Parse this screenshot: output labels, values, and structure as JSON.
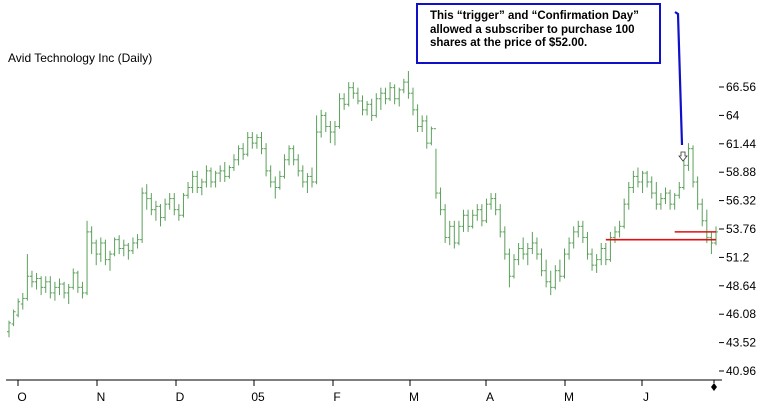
{
  "chart_data": {
    "type": "ohlc",
    "title": "Avid Technology Inc (Daily)",
    "annotation": "This “trigger” and “Confirmation Day” allowed a subscriber to purchase 100 shares at the price of $52.00.",
    "y_ticks": [
      "66.56",
      "64",
      "61.44",
      "58.88",
      "56.32",
      "53.76",
      "51.2",
      "48.64",
      "46.08",
      "43.52",
      "40.96"
    ],
    "ylim": [
      40.96,
      66.56
    ],
    "x_ticks": [
      "O",
      "N",
      "D",
      "05",
      "F",
      "M",
      "A",
      "M",
      "J"
    ],
    "grid": false,
    "bar_color": "#5aa05a",
    "annotation_color": "#1010c8",
    "level_color": "#e01010",
    "levels": [
      {
        "label": "upper",
        "value": 53.5,
        "start_day": 145
      },
      {
        "label": "lower",
        "value": 52.8,
        "start_day": 130
      }
    ],
    "series": [
      {
        "values": [
          [
            44.5,
            45.5,
            44.0,
            45.3
          ],
          [
            45.2,
            46.5,
            45.0,
            46.3
          ],
          [
            46.0,
            47.5,
            45.8,
            47.2
          ],
          [
            47.0,
            48.0,
            46.5,
            47.5
          ],
          [
            47.5,
            51.5,
            47.3,
            49.5
          ],
          [
            49.5,
            50.0,
            48.5,
            49.0
          ],
          [
            49.0,
            49.8,
            48.3,
            49.3
          ],
          [
            49.3,
            49.5,
            47.8,
            48.5
          ],
          [
            48.5,
            49.5,
            48.0,
            49.0
          ],
          [
            49.0,
            49.5,
            47.5,
            48.0
          ],
          [
            48.0,
            49.0,
            47.3,
            48.5
          ],
          [
            48.5,
            49.3,
            47.8,
            48.8
          ],
          [
            48.8,
            49.0,
            47.5,
            48.0
          ],
          [
            48.0,
            48.8,
            47.0,
            48.5
          ],
          [
            48.5,
            50.2,
            48.3,
            49.8
          ],
          [
            49.8,
            50.0,
            48.0,
            48.5
          ],
          [
            48.5,
            49.0,
            47.5,
            48.0
          ],
          [
            48.0,
            54.5,
            47.8,
            53.5
          ],
          [
            53.5,
            54.0,
            51.5,
            52.5
          ],
          [
            52.5,
            52.8,
            50.5,
            51.5
          ],
          [
            51.5,
            53.0,
            50.8,
            52.5
          ],
          [
            52.5,
            52.8,
            50.5,
            51.0
          ],
          [
            51.0,
            51.8,
            50.0,
            51.5
          ],
          [
            51.5,
            53.0,
            51.3,
            52.8
          ],
          [
            52.8,
            53.2,
            51.5,
            52.0
          ],
          [
            52.0,
            52.8,
            51.3,
            52.3
          ],
          [
            52.3,
            52.5,
            51.0,
            51.8
          ],
          [
            51.8,
            53.0,
            51.5,
            52.5
          ],
          [
            52.5,
            53.3,
            52.0,
            52.8
          ],
          [
            52.8,
            57.5,
            52.5,
            57.0
          ],
          [
            57.0,
            57.8,
            55.5,
            56.5
          ],
          [
            56.5,
            57.0,
            55.0,
            55.5
          ],
          [
            55.5,
            56.3,
            54.5,
            55.8
          ],
          [
            55.8,
            56.0,
            54.0,
            54.8
          ],
          [
            54.8,
            56.5,
            54.5,
            56.0
          ],
          [
            56.0,
            57.0,
            55.5,
            56.5
          ],
          [
            56.5,
            57.0,
            55.0,
            55.5
          ],
          [
            55.5,
            56.0,
            54.5,
            55.0
          ],
          [
            55.0,
            57.0,
            54.8,
            56.8
          ],
          [
            56.8,
            58.0,
            56.5,
            57.5
          ],
          [
            57.5,
            59.0,
            57.0,
            58.5
          ],
          [
            58.5,
            59.0,
            57.0,
            57.5
          ],
          [
            57.5,
            58.3,
            56.8,
            58.0
          ],
          [
            58.0,
            59.5,
            57.5,
            59.0
          ],
          [
            59.0,
            59.3,
            57.5,
            58.0
          ],
          [
            58.0,
            59.0,
            57.5,
            58.8
          ],
          [
            58.8,
            59.5,
            58.0,
            59.0
          ],
          [
            59.0,
            59.8,
            58.0,
            58.5
          ],
          [
            58.5,
            59.5,
            58.3,
            59.3
          ],
          [
            59.3,
            60.5,
            59.0,
            60.0
          ],
          [
            60.0,
            61.3,
            59.5,
            61.0
          ],
          [
            61.0,
            61.5,
            60.0,
            60.5
          ],
          [
            60.5,
            62.5,
            60.3,
            62.0
          ],
          [
            62.0,
            62.5,
            61.0,
            61.5
          ],
          [
            61.5,
            62.3,
            61.0,
            62.0
          ],
          [
            62.0,
            62.5,
            60.5,
            61.0
          ],
          [
            61.0,
            61.5,
            58.5,
            59.0
          ],
          [
            59.0,
            59.5,
            57.5,
            58.0
          ],
          [
            58.0,
            58.5,
            56.5,
            57.5
          ],
          [
            57.5,
            59.0,
            57.3,
            58.5
          ],
          [
            58.5,
            60.5,
            58.3,
            60.0
          ],
          [
            60.0,
            61.3,
            59.5,
            61.0
          ],
          [
            61.0,
            61.3,
            59.5,
            60.0
          ],
          [
            60.0,
            60.5,
            58.5,
            59.0
          ],
          [
            59.0,
            59.5,
            57.5,
            58.0
          ],
          [
            58.0,
            58.8,
            57.0,
            58.5
          ],
          [
            58.5,
            59.3,
            57.5,
            58.0
          ],
          [
            58.0,
            64.0,
            57.8,
            62.5
          ],
          [
            62.5,
            64.5,
            62.0,
            64.0
          ],
          [
            64.0,
            64.3,
            62.5,
            63.0
          ],
          [
            63.0,
            63.5,
            61.5,
            62.5
          ],
          [
            62.5,
            63.5,
            61.3,
            63.0
          ],
          [
            63.0,
            66.0,
            62.8,
            65.5
          ],
          [
            65.5,
            66.0,
            64.5,
            65.0
          ],
          [
            65.0,
            67.0,
            64.8,
            66.5
          ],
          [
            66.5,
            67.0,
            65.5,
            66.0
          ],
          [
            66.0,
            66.5,
            65.0,
            65.3
          ],
          [
            65.3,
            65.8,
            64.0,
            64.5
          ],
          [
            64.5,
            65.3,
            64.0,
            65.0
          ],
          [
            65.0,
            65.5,
            63.5,
            64.0
          ],
          [
            64.0,
            66.0,
            63.8,
            65.5
          ],
          [
            65.5,
            66.5,
            64.5,
            66.0
          ],
          [
            66.0,
            66.5,
            65.0,
            65.5
          ],
          [
            65.5,
            67.0,
            65.3,
            66.5
          ],
          [
            66.5,
            66.8,
            65.0,
            65.5
          ],
          [
            65.5,
            66.5,
            64.8,
            66.3
          ],
          [
            66.3,
            67.3,
            66.0,
            67.0
          ],
          [
            67.0,
            68.0,
            65.5,
            66.0
          ],
          [
            66.0,
            66.5,
            64.0,
            64.5
          ],
          [
            64.5,
            65.0,
            62.5,
            63.0
          ],
          [
            63.0,
            64.0,
            62.5,
            63.5
          ],
          [
            63.5,
            64.0,
            61.0,
            61.5
          ],
          [
            61.5,
            63.0,
            61.3,
            62.8
          ],
          [
            62.8,
            61.0,
            56.5,
            57.0
          ],
          [
            57.0,
            57.5,
            55.0,
            55.5
          ],
          [
            55.5,
            56.0,
            52.5,
            53.0
          ],
          [
            53.0,
            54.5,
            52.3,
            54.0
          ],
          [
            54.0,
            54.5,
            52.0,
            52.5
          ],
          [
            52.5,
            54.5,
            52.3,
            54.0
          ],
          [
            54.0,
            55.5,
            53.5,
            55.0
          ],
          [
            55.0,
            55.5,
            53.5,
            54.0
          ],
          [
            54.0,
            55.5,
            53.8,
            55.0
          ],
          [
            55.0,
            56.0,
            54.5,
            55.5
          ],
          [
            55.5,
            56.0,
            54.0,
            54.5
          ],
          [
            54.5,
            56.5,
            54.3,
            56.0
          ],
          [
            56.0,
            57.0,
            55.5,
            56.5
          ],
          [
            56.5,
            57.0,
            55.0,
            55.5
          ],
          [
            55.5,
            56.0,
            53.0,
            53.5
          ],
          [
            53.5,
            54.0,
            51.0,
            51.5
          ],
          [
            51.5,
            52.0,
            48.5,
            49.5
          ],
          [
            49.5,
            51.5,
            49.3,
            51.0
          ],
          [
            51.0,
            52.5,
            50.5,
            52.0
          ],
          [
            52.0,
            53.0,
            51.0,
            51.5
          ],
          [
            51.5,
            52.5,
            50.5,
            52.0
          ],
          [
            52.0,
            53.5,
            51.5,
            52.5
          ],
          [
            52.5,
            53.0,
            51.0,
            51.5
          ],
          [
            51.5,
            52.0,
            49.5,
            50.0
          ],
          [
            50.0,
            51.0,
            48.5,
            49.0
          ],
          [
            49.0,
            50.0,
            47.8,
            48.5
          ],
          [
            48.5,
            50.5,
            48.3,
            50.0
          ],
          [
            50.0,
            51.0,
            49.0,
            49.5
          ],
          [
            49.5,
            52.0,
            49.3,
            51.5
          ],
          [
            51.5,
            53.0,
            51.0,
            52.5
          ],
          [
            52.5,
            54.0,
            52.0,
            53.5
          ],
          [
            53.5,
            54.5,
            53.0,
            54.0
          ],
          [
            54.0,
            54.5,
            52.5,
            53.0
          ],
          [
            53.0,
            53.5,
            51.0,
            51.5
          ],
          [
            51.5,
            52.0,
            50.0,
            50.5
          ],
          [
            50.5,
            51.5,
            49.8,
            51.0
          ],
          [
            51.0,
            52.5,
            50.5,
            52.0
          ],
          [
            52.0,
            52.5,
            50.5,
            51.0
          ],
          [
            51.0,
            53.5,
            50.8,
            53.0
          ],
          [
            53.0,
            54.0,
            52.5,
            53.5
          ],
          [
            53.5,
            54.5,
            53.0,
            54.0
          ],
          [
            54.0,
            56.5,
            53.8,
            56.0
          ],
          [
            56.0,
            58.0,
            55.5,
            57.5
          ],
          [
            57.5,
            59.0,
            57.0,
            58.5
          ],
          [
            58.5,
            59.3,
            57.5,
            58.0
          ],
          [
            58.0,
            59.0,
            57.0,
            58.8
          ],
          [
            58.8,
            59.0,
            57.5,
            58.0
          ],
          [
            58.0,
            58.5,
            56.5,
            57.0
          ],
          [
            57.0,
            58.0,
            55.5,
            56.0
          ],
          [
            56.0,
            57.0,
            55.5,
            56.5
          ],
          [
            56.5,
            57.5,
            56.0,
            57.0
          ],
          [
            57.0,
            57.3,
            55.5,
            56.0
          ],
          [
            56.0,
            57.0,
            55.5,
            56.8
          ],
          [
            56.8,
            58.0,
            56.5,
            57.5
          ],
          [
            57.5,
            60.0,
            57.3,
            59.5
          ],
          [
            59.5,
            61.5,
            59.0,
            61.0
          ],
          [
            61.0,
            61.3,
            57.5,
            58.0
          ],
          [
            58.0,
            58.5,
            55.5,
            56.0
          ],
          [
            56.0,
            56.5,
            54.0,
            54.5
          ],
          [
            54.5,
            55.5,
            52.5,
            53.0
          ],
          [
            53.0,
            53.5,
            51.5,
            52.5
          ],
          [
            52.5,
            54.0,
            52.3,
            53.5
          ]
        ]
      }
    ]
  }
}
